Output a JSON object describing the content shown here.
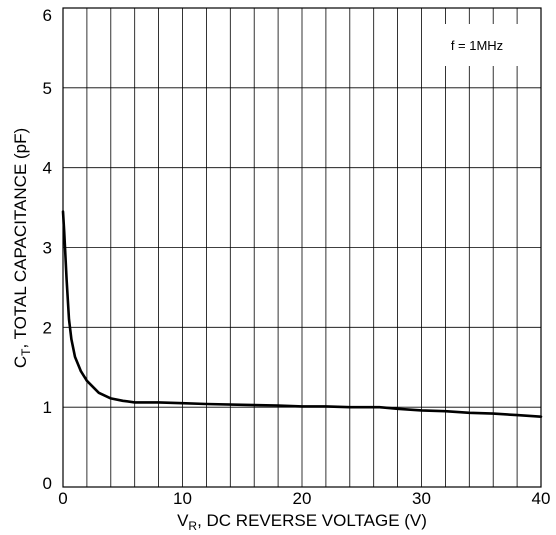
{
  "chart_data": {
    "type": "line",
    "title": "",
    "xlabel": {
      "main": "V",
      "sub": "R",
      "rest": ", DC REVERSE VOLTAGE (V)"
    },
    "ylabel": {
      "main": "C",
      "sub": "T",
      "rest": ", TOTAL CAPACITANCE (pF)"
    },
    "xlim": [
      0,
      40
    ],
    "ylim": [
      0,
      6
    ],
    "x_ticks": [
      "0",
      "10",
      "20",
      "30",
      "40"
    ],
    "y_ticks": [
      "0",
      "1",
      "2",
      "3",
      "4",
      "5",
      "6"
    ],
    "x_grid_step": 2,
    "y_grid_step": 1,
    "grid": true,
    "annotation": "f = 1MHz",
    "series": [
      {
        "x": [
          0,
          0.1,
          0.2,
          0.3,
          0.5,
          0.7,
          1,
          1.5,
          2,
          3,
          4,
          5,
          6,
          8,
          10,
          12,
          15,
          18,
          20,
          22,
          24,
          26,
          26.5,
          28,
          30,
          32,
          34,
          36,
          38,
          40
        ],
        "values": [
          3.45,
          3.2,
          2.9,
          2.6,
          2.1,
          1.85,
          1.63,
          1.45,
          1.33,
          1.18,
          1.11,
          1.08,
          1.06,
          1.06,
          1.05,
          1.04,
          1.03,
          1.02,
          1.01,
          1.01,
          1.0,
          1.0,
          1.0,
          0.98,
          0.96,
          0.95,
          0.93,
          0.92,
          0.9,
          0.88
        ]
      }
    ],
    "colors": {
      "line": "#000000",
      "grid": "#000000"
    }
  }
}
